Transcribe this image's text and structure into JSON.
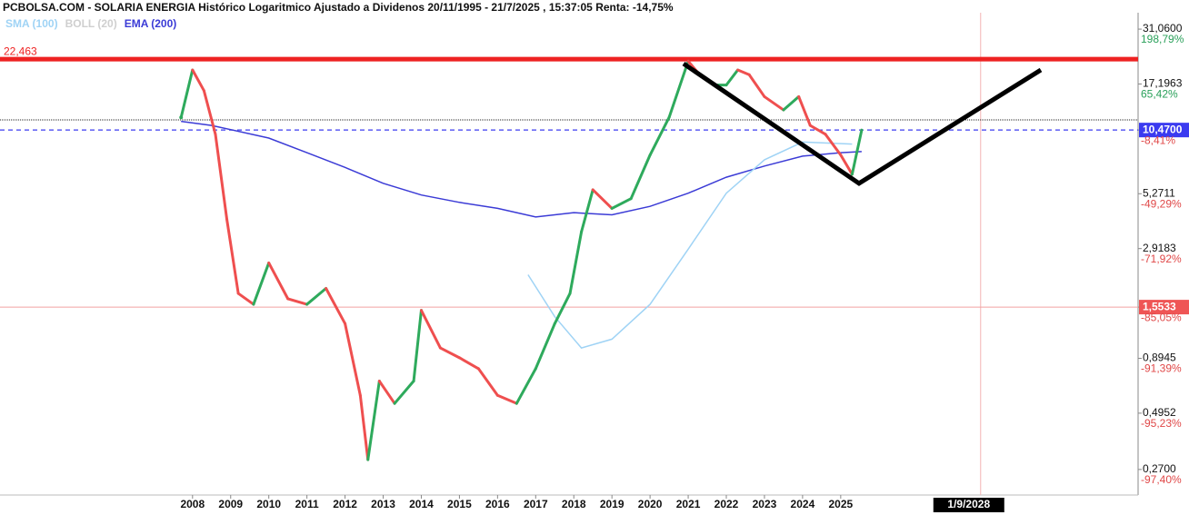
{
  "header": {
    "title": "PCBOLSA.COM - SOLARIA ENERGIA Histórico Logaritmico Ajustado a Dividenos 20/11/1995 - 21/7/2025 , 15:37:05 Renta: -14,75%"
  },
  "chart_data": {
    "type": "line",
    "log_scale": true,
    "legend": [
      {
        "name": "SMA (100)",
        "color": "#9fd3f5"
      },
      {
        "name": "BOLL (20)",
        "color": "#cfcfcf"
      },
      {
        "name": "EMA (200)",
        "color": "#3b3bd6"
      }
    ],
    "xlim": [
      2002.95,
      2032.8
    ],
    "xticks": [
      2008,
      2009,
      2010,
      2011,
      2012,
      2013,
      2014,
      2015,
      2016,
      2017,
      2018,
      2019,
      2020,
      2021,
      2022,
      2023,
      2024,
      2025
    ],
    "ylim": [
      0.205,
      37.8
    ],
    "yticks": [
      {
        "value": 31.06,
        "label": "31,0600"
      },
      {
        "value": 17.1963,
        "label": "17,1963"
      },
      {
        "value": 10.47,
        "label": "10,4700"
      },
      {
        "value": 5.2711,
        "label": "5,2711"
      },
      {
        "value": 2.9183,
        "label": "2,9183"
      },
      {
        "value": 1.5533,
        "label": "1,5533"
      },
      {
        "value": 0.8945,
        "label": "0,8945"
      },
      {
        "value": 0.4952,
        "label": "0,4952"
      },
      {
        "value": 0.27,
        "label": "0,2700"
      }
    ],
    "ytick_changes": [
      "198,79%",
      "65,42%",
      "-8,41%",
      "-49,29%",
      "-71,92%",
      "-85,05%",
      "-91,39%",
      "-95,23%",
      "-97,40%"
    ],
    "price": {
      "color_up": "#2eaa5c",
      "color_down": "#ef4f4f",
      "x": [
        2007.7,
        2008.0,
        2008.3,
        2008.6,
        2008.9,
        2009.2,
        2009.6,
        2010.0,
        2010.5,
        2011.0,
        2011.5,
        2012.0,
        2012.4,
        2012.6,
        2012.9,
        2013.3,
        2013.8,
        2014.0,
        2014.5,
        2015.0,
        2015.5,
        2016.0,
        2016.5,
        2017.0,
        2017.5,
        2017.9,
        2018.2,
        2018.5,
        2019.0,
        2019.5,
        2020.0,
        2020.5,
        2021.0,
        2021.3,
        2021.7,
        2022.0,
        2022.3,
        2022.6,
        2023.0,
        2023.5,
        2023.9,
        2024.2,
        2024.6,
        2025.0,
        2025.3,
        2025.55
      ],
      "values": [
        12,
        20,
        16,
        10,
        4,
        1.8,
        1.6,
        2.5,
        1.7,
        1.6,
        1.9,
        1.3,
        0.6,
        0.3,
        0.7,
        0.55,
        0.7,
        1.5,
        1.0,
        0.9,
        0.8,
        0.6,
        0.55,
        0.8,
        1.3,
        1.8,
        3.5,
        5.5,
        4.5,
        5.0,
        8,
        12,
        22,
        19,
        17,
        17,
        20,
        19,
        15,
        13,
        15,
        11,
        10,
        8,
        6.5,
        10.47
      ]
    },
    "series": [
      {
        "color": "#3b3bd6",
        "x": [
          2007.7,
          2008.5,
          2010,
          2011,
          2012,
          2013,
          2014,
          2015,
          2016,
          2017,
          2018,
          2019,
          2020,
          2021,
          2022,
          2023,
          2024,
          2025,
          2025.55
        ],
        "values": [
          11.5,
          11,
          9.6,
          8.2,
          7,
          5.9,
          5.2,
          4.8,
          4.5,
          4.1,
          4.3,
          4.2,
          4.6,
          5.3,
          6.3,
          7.1,
          7.9,
          8.2,
          8.3
        ]
      },
      {
        "color": "#9fd3f5",
        "x": [
          2016.8,
          2017.5,
          2018.2,
          2019,
          2020,
          2021,
          2022,
          2023,
          2024,
          2025.3
        ],
        "values": [
          2.2,
          1.4,
          1.0,
          1.1,
          1.6,
          2.9,
          5.3,
          7.6,
          9.2,
          9.0
        ]
      }
    ],
    "levels": [
      {
        "value": 22.463,
        "label": "22,463",
        "color": "#ee2222",
        "style": "thick"
      },
      {
        "value": 11.68,
        "color": "#222222",
        "style": "dotted"
      },
      {
        "value": 10.47,
        "color": "#3b3bf0",
        "style": "dashed"
      },
      {
        "value": 1.5533,
        "color": "#f2a0a0",
        "style": "thin"
      }
    ],
    "trendline": {
      "color": "#000000",
      "x": [
        2020.88,
        2025.48,
        2030.25
      ],
      "values": [
        21.4,
        5.89,
        20.0
      ]
    },
    "cursor": {
      "x": 2028.67,
      "label": "1/9/2028",
      "color": "#f3b4b4"
    }
  }
}
